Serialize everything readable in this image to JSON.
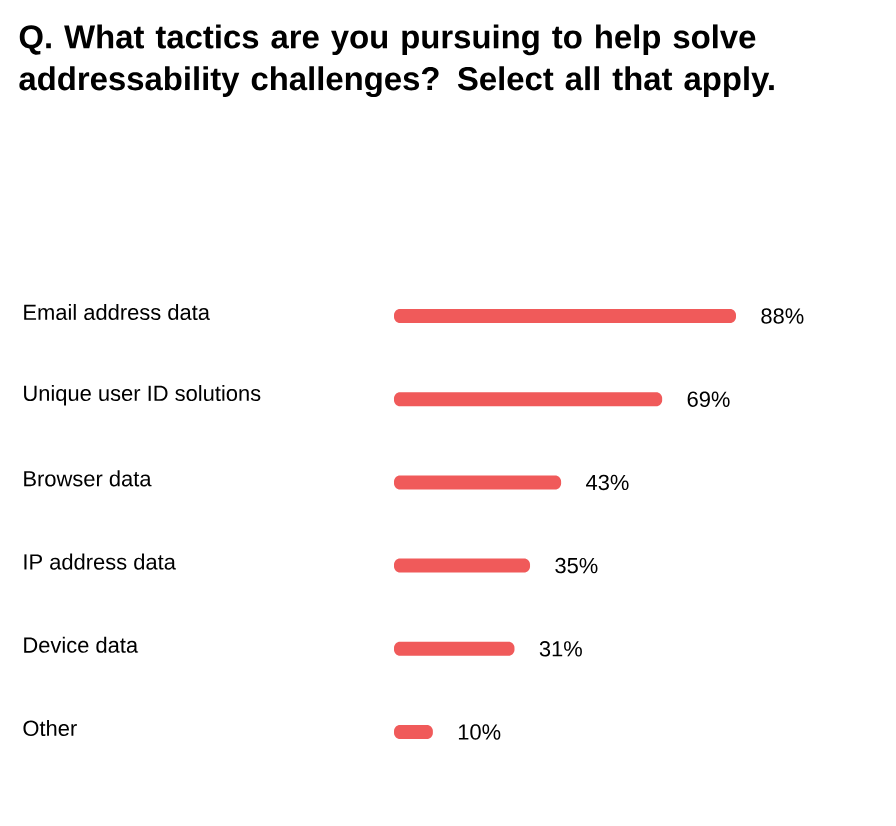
{
  "chart_data": {
    "type": "bar",
    "orientation": "horizontal",
    "title": "Q. What tactics are you pursuing to help solve addressability challenges? Select all that apply.",
    "categories": [
      "Email address data",
      "Unique user ID solutions",
      "Browser data",
      "IP address data",
      "Device data",
      "Other"
    ],
    "values": [
      88,
      69,
      43,
      35,
      31,
      10
    ],
    "value_labels": [
      "88%",
      "69%",
      "43%",
      "35%",
      "31%",
      "10%"
    ],
    "color": "#f05a5a"
  }
}
